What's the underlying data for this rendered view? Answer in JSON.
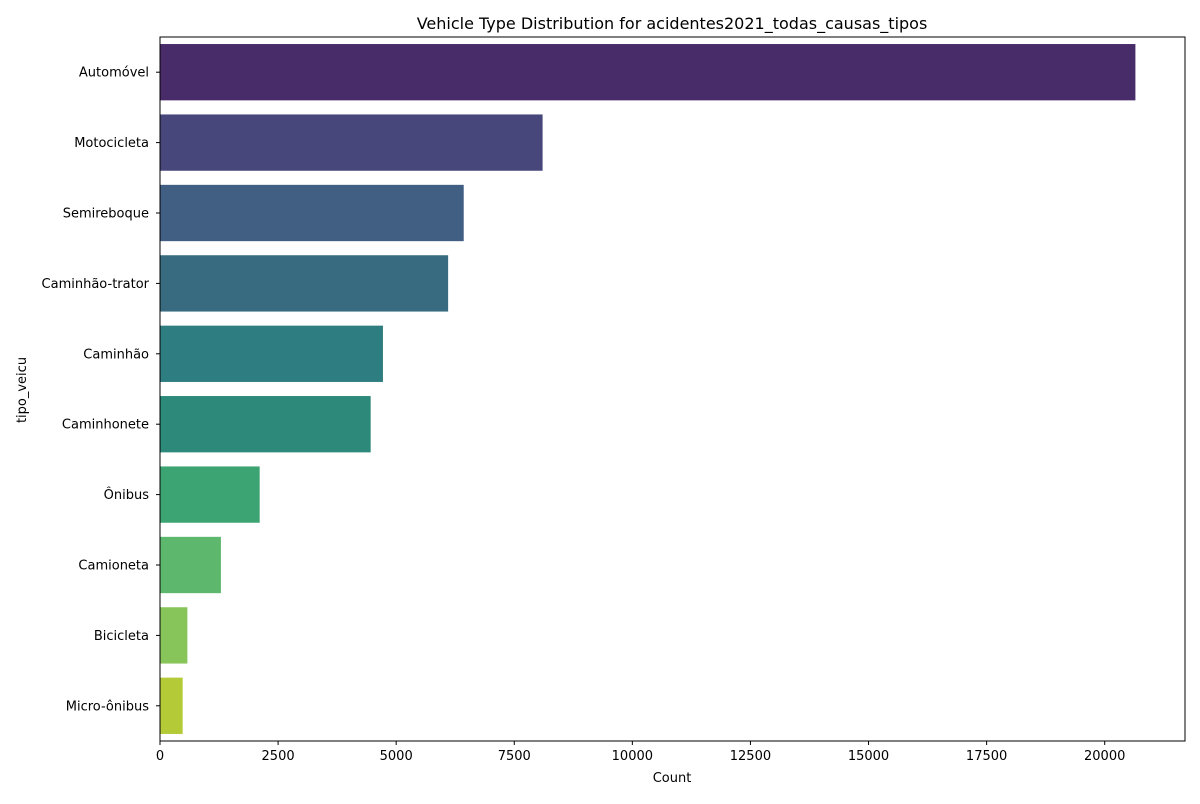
{
  "chart_data": {
    "type": "bar",
    "orientation": "horizontal",
    "title": "Vehicle Type Distribution for acidentes2021_todas_causas_tipos",
    "xlabel": "Count",
    "ylabel": "tipo_veicu",
    "xlim": [
      0,
      21700
    ],
    "x_ticks": [
      0,
      2500,
      5000,
      7500,
      10000,
      12500,
      15000,
      17500,
      20000
    ],
    "grid": false,
    "legend": "none",
    "categories": [
      "Automóvel",
      "Motocicleta",
      "Semireboque",
      "Caminhão-trator",
      "Caminhão",
      "Caminhonete",
      "Ônibus",
      "Camioneta",
      "Bicicleta",
      "Micro-ônibus"
    ],
    "values": [
      20650,
      8100,
      6430,
      6100,
      4720,
      4460,
      2110,
      1290,
      580,
      480
    ],
    "colors": [
      "#482b69",
      "#47477c",
      "#415e83",
      "#386b80",
      "#2e7d80",
      "#2d8a7b",
      "#3ba472",
      "#5db76c",
      "#87c45a",
      "#b4ca36"
    ]
  }
}
